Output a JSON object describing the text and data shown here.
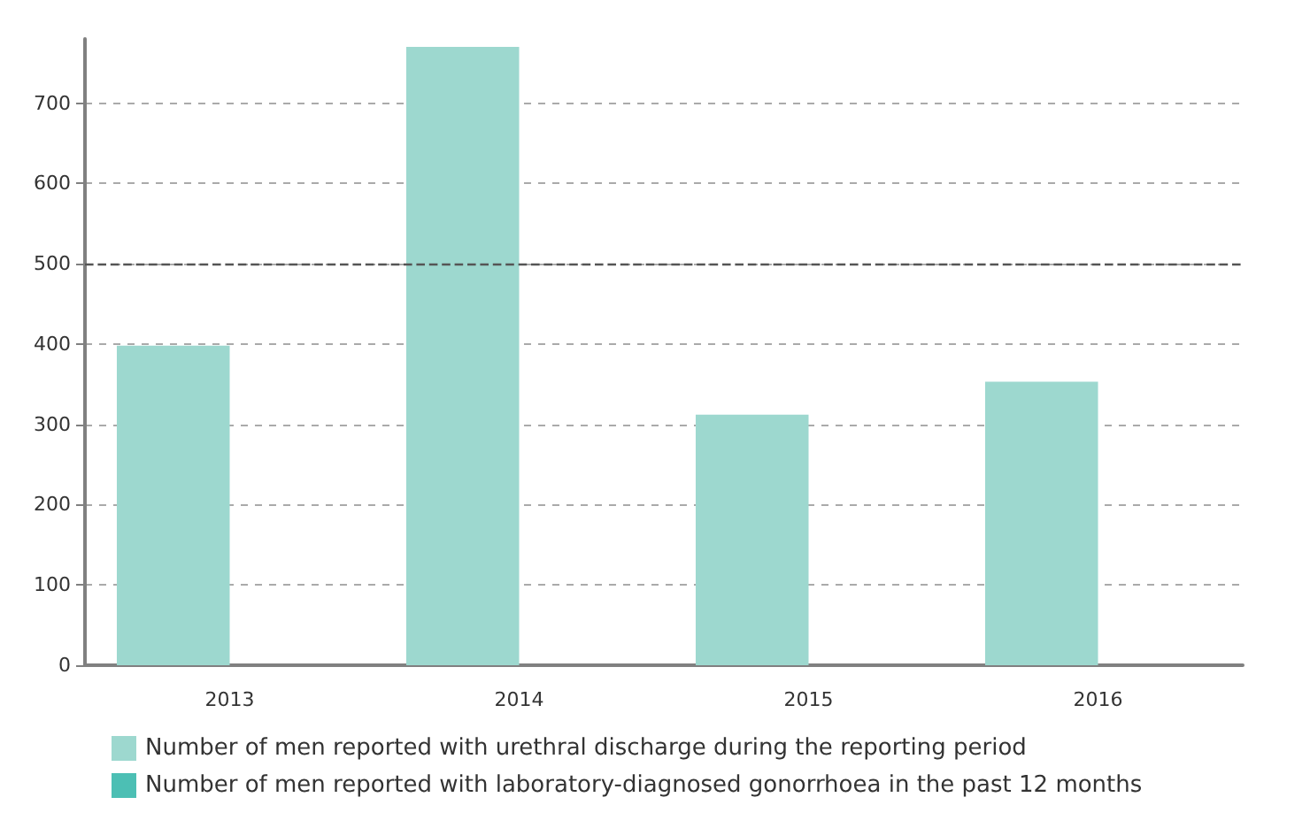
{
  "chart_data": {
    "type": "bar",
    "categories": [
      "2013",
      "2014",
      "2015",
      "2016"
    ],
    "series": [
      {
        "name": "Number of men reported with urethral discharge during the reporting period",
        "color": "#9dd8cf",
        "values": [
          398,
          770,
          312,
          353
        ]
      },
      {
        "name": "Number of men reported with laboratory-diagnosed gonorrhoea in the past 12 months",
        "color": "#4cbfb4",
        "values": [
          null,
          null,
          null,
          null
        ]
      }
    ],
    "ylim": [
      0,
      780
    ],
    "yticks": [
      0,
      100,
      200,
      300,
      400,
      500,
      600,
      700
    ],
    "grid": "y",
    "legend": "bottom",
    "ref_lines": [
      {
        "axis": "y",
        "value": 500,
        "color": "#555555",
        "line_style": "dashed"
      }
    ]
  }
}
